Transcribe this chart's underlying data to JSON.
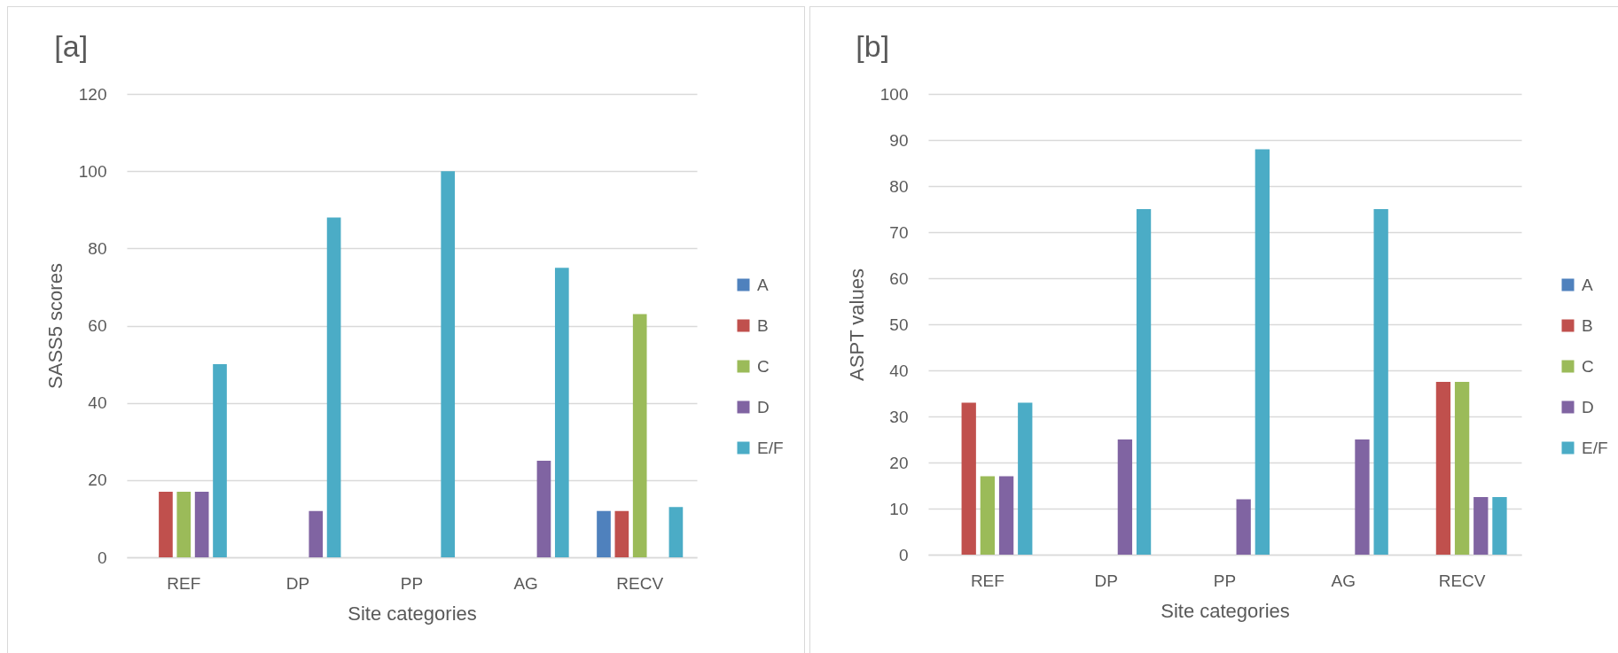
{
  "chart_data": [
    {
      "type": "bar",
      "title": "[a]",
      "xlabel": "Site categories",
      "ylabel": "SASS5 scores",
      "categories": [
        "REF",
        "DP",
        "PP",
        "AG",
        "RECV"
      ],
      "series": [
        {
          "name": "A",
          "color": "#4f81bd",
          "values": [
            null,
            null,
            null,
            null,
            12
          ]
        },
        {
          "name": "B",
          "color": "#c0504d",
          "values": [
            17,
            null,
            null,
            null,
            12
          ]
        },
        {
          "name": "C",
          "color": "#9bbb59",
          "values": [
            17,
            null,
            null,
            null,
            63
          ]
        },
        {
          "name": "D",
          "color": "#8064a2",
          "values": [
            17,
            12,
            null,
            25,
            null
          ]
        },
        {
          "name": "E/F",
          "color": "#4bacc6",
          "values": [
            50,
            88,
            100,
            75,
            13
          ]
        }
      ],
      "ylim": [
        0,
        120
      ],
      "yticks": [
        0,
        20,
        40,
        60,
        80,
        100,
        120
      ],
      "grid": "y",
      "legend": "right"
    },
    {
      "type": "bar",
      "title": "[b]",
      "xlabel": "Site categories",
      "ylabel": "ASPT values",
      "categories": [
        "REF",
        "DP",
        "PP",
        "AG",
        "RECV"
      ],
      "series": [
        {
          "name": "A",
          "color": "#4f81bd",
          "values": [
            null,
            null,
            null,
            null,
            null
          ]
        },
        {
          "name": "B",
          "color": "#c0504d",
          "values": [
            33,
            null,
            null,
            null,
            37.5
          ]
        },
        {
          "name": "C",
          "color": "#9bbb59",
          "values": [
            17,
            null,
            null,
            null,
            37.5
          ]
        },
        {
          "name": "D",
          "color": "#8064a2",
          "values": [
            17,
            25,
            12,
            25,
            12.5
          ]
        },
        {
          "name": "E/F",
          "color": "#4bacc6",
          "values": [
            33,
            75,
            88,
            75,
            12.5
          ]
        }
      ],
      "ylim": [
        0,
        100
      ],
      "yticks": [
        0,
        10,
        20,
        30,
        40,
        50,
        60,
        70,
        80,
        90,
        100
      ],
      "grid": "y",
      "legend": "right"
    }
  ]
}
